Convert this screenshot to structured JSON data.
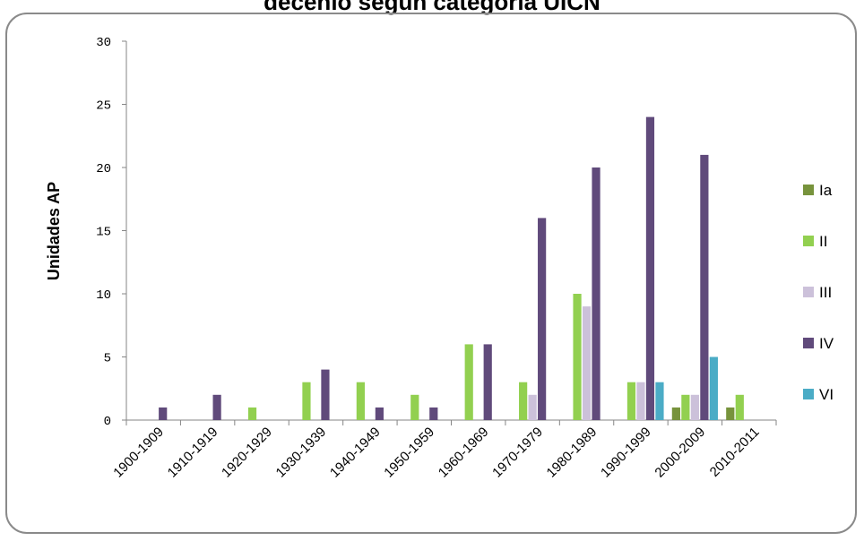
{
  "chart_data": {
    "type": "bar",
    "title": "decenio según categoría UICN",
    "xlabel": "",
    "ylabel": "Unidades AP",
    "ylim": [
      0,
      30
    ],
    "yticks": [
      0,
      5,
      10,
      15,
      20,
      25,
      30
    ],
    "grid": false,
    "legend_position": "right",
    "categories": [
      "1900-1909",
      "1910-1919",
      "1920-1929",
      "1930-1939",
      "1940-1949",
      "1950-1959",
      "1960-1969",
      "1970-1979",
      "1980-1989",
      "1990-1999",
      "2000-2009",
      "2010-2011"
    ],
    "series": [
      {
        "name": "Ia",
        "color": "#77933c",
        "values": [
          0,
          0,
          0,
          0,
          0,
          0,
          0,
          0,
          0,
          0,
          1,
          1
        ]
      },
      {
        "name": "II",
        "color": "#92d050",
        "values": [
          0,
          0,
          1,
          3,
          3,
          2,
          6,
          3,
          10,
          3,
          2,
          2
        ]
      },
      {
        "name": "III",
        "color": "#ccc1da",
        "values": [
          0,
          0,
          0,
          0,
          0,
          0,
          0,
          2,
          9,
          3,
          2,
          0
        ]
      },
      {
        "name": "IV",
        "color": "#604a7b",
        "values": [
          1,
          2,
          0,
          4,
          1,
          1,
          6,
          16,
          20,
          24,
          21,
          0
        ]
      },
      {
        "name": "VI",
        "color": "#4bacc6",
        "values": [
          0,
          0,
          0,
          0,
          0,
          0,
          0,
          0,
          0,
          3,
          5,
          0
        ]
      }
    ]
  }
}
